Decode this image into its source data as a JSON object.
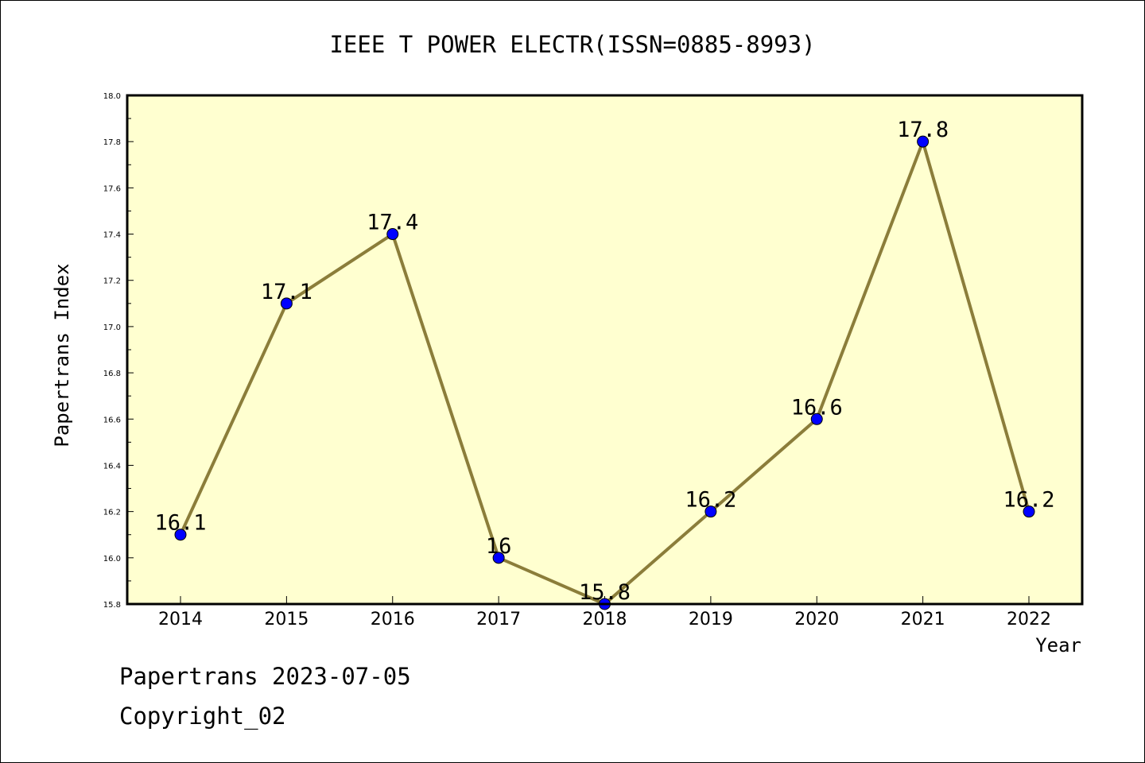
{
  "chart_data": {
    "type": "line",
    "title": "IEEE T POWER ELECTR(ISSN=0885-8993)",
    "xlabel": "Year",
    "ylabel": "Papertrans Index",
    "categories": [
      "2014",
      "2015",
      "2016",
      "2017",
      "2018",
      "2019",
      "2020",
      "2021",
      "2022"
    ],
    "values": [
      16.1,
      17.1,
      17.4,
      16.0,
      15.8,
      16.2,
      16.6,
      17.8,
      16.2
    ],
    "data_labels": [
      "16.1",
      "17.1",
      "17.4",
      "16",
      "15.8",
      "16.2",
      "16.6",
      "17.8",
      "16.2"
    ],
    "ylim": [
      15.8,
      18.0
    ],
    "y_ticks": [
      "15.8",
      "16.0",
      "16.2",
      "16.4",
      "16.6",
      "16.8",
      "17.0",
      "17.2",
      "17.4",
      "17.6",
      "17.8",
      "18.0"
    ],
    "grid": false,
    "colors": {
      "plot_background": "#ffffd0",
      "line": "#8b7d3a",
      "marker": "#0000ff"
    }
  },
  "footer": {
    "line1": "Papertrans 2023-07-05",
    "line2": "Copyright_02"
  }
}
